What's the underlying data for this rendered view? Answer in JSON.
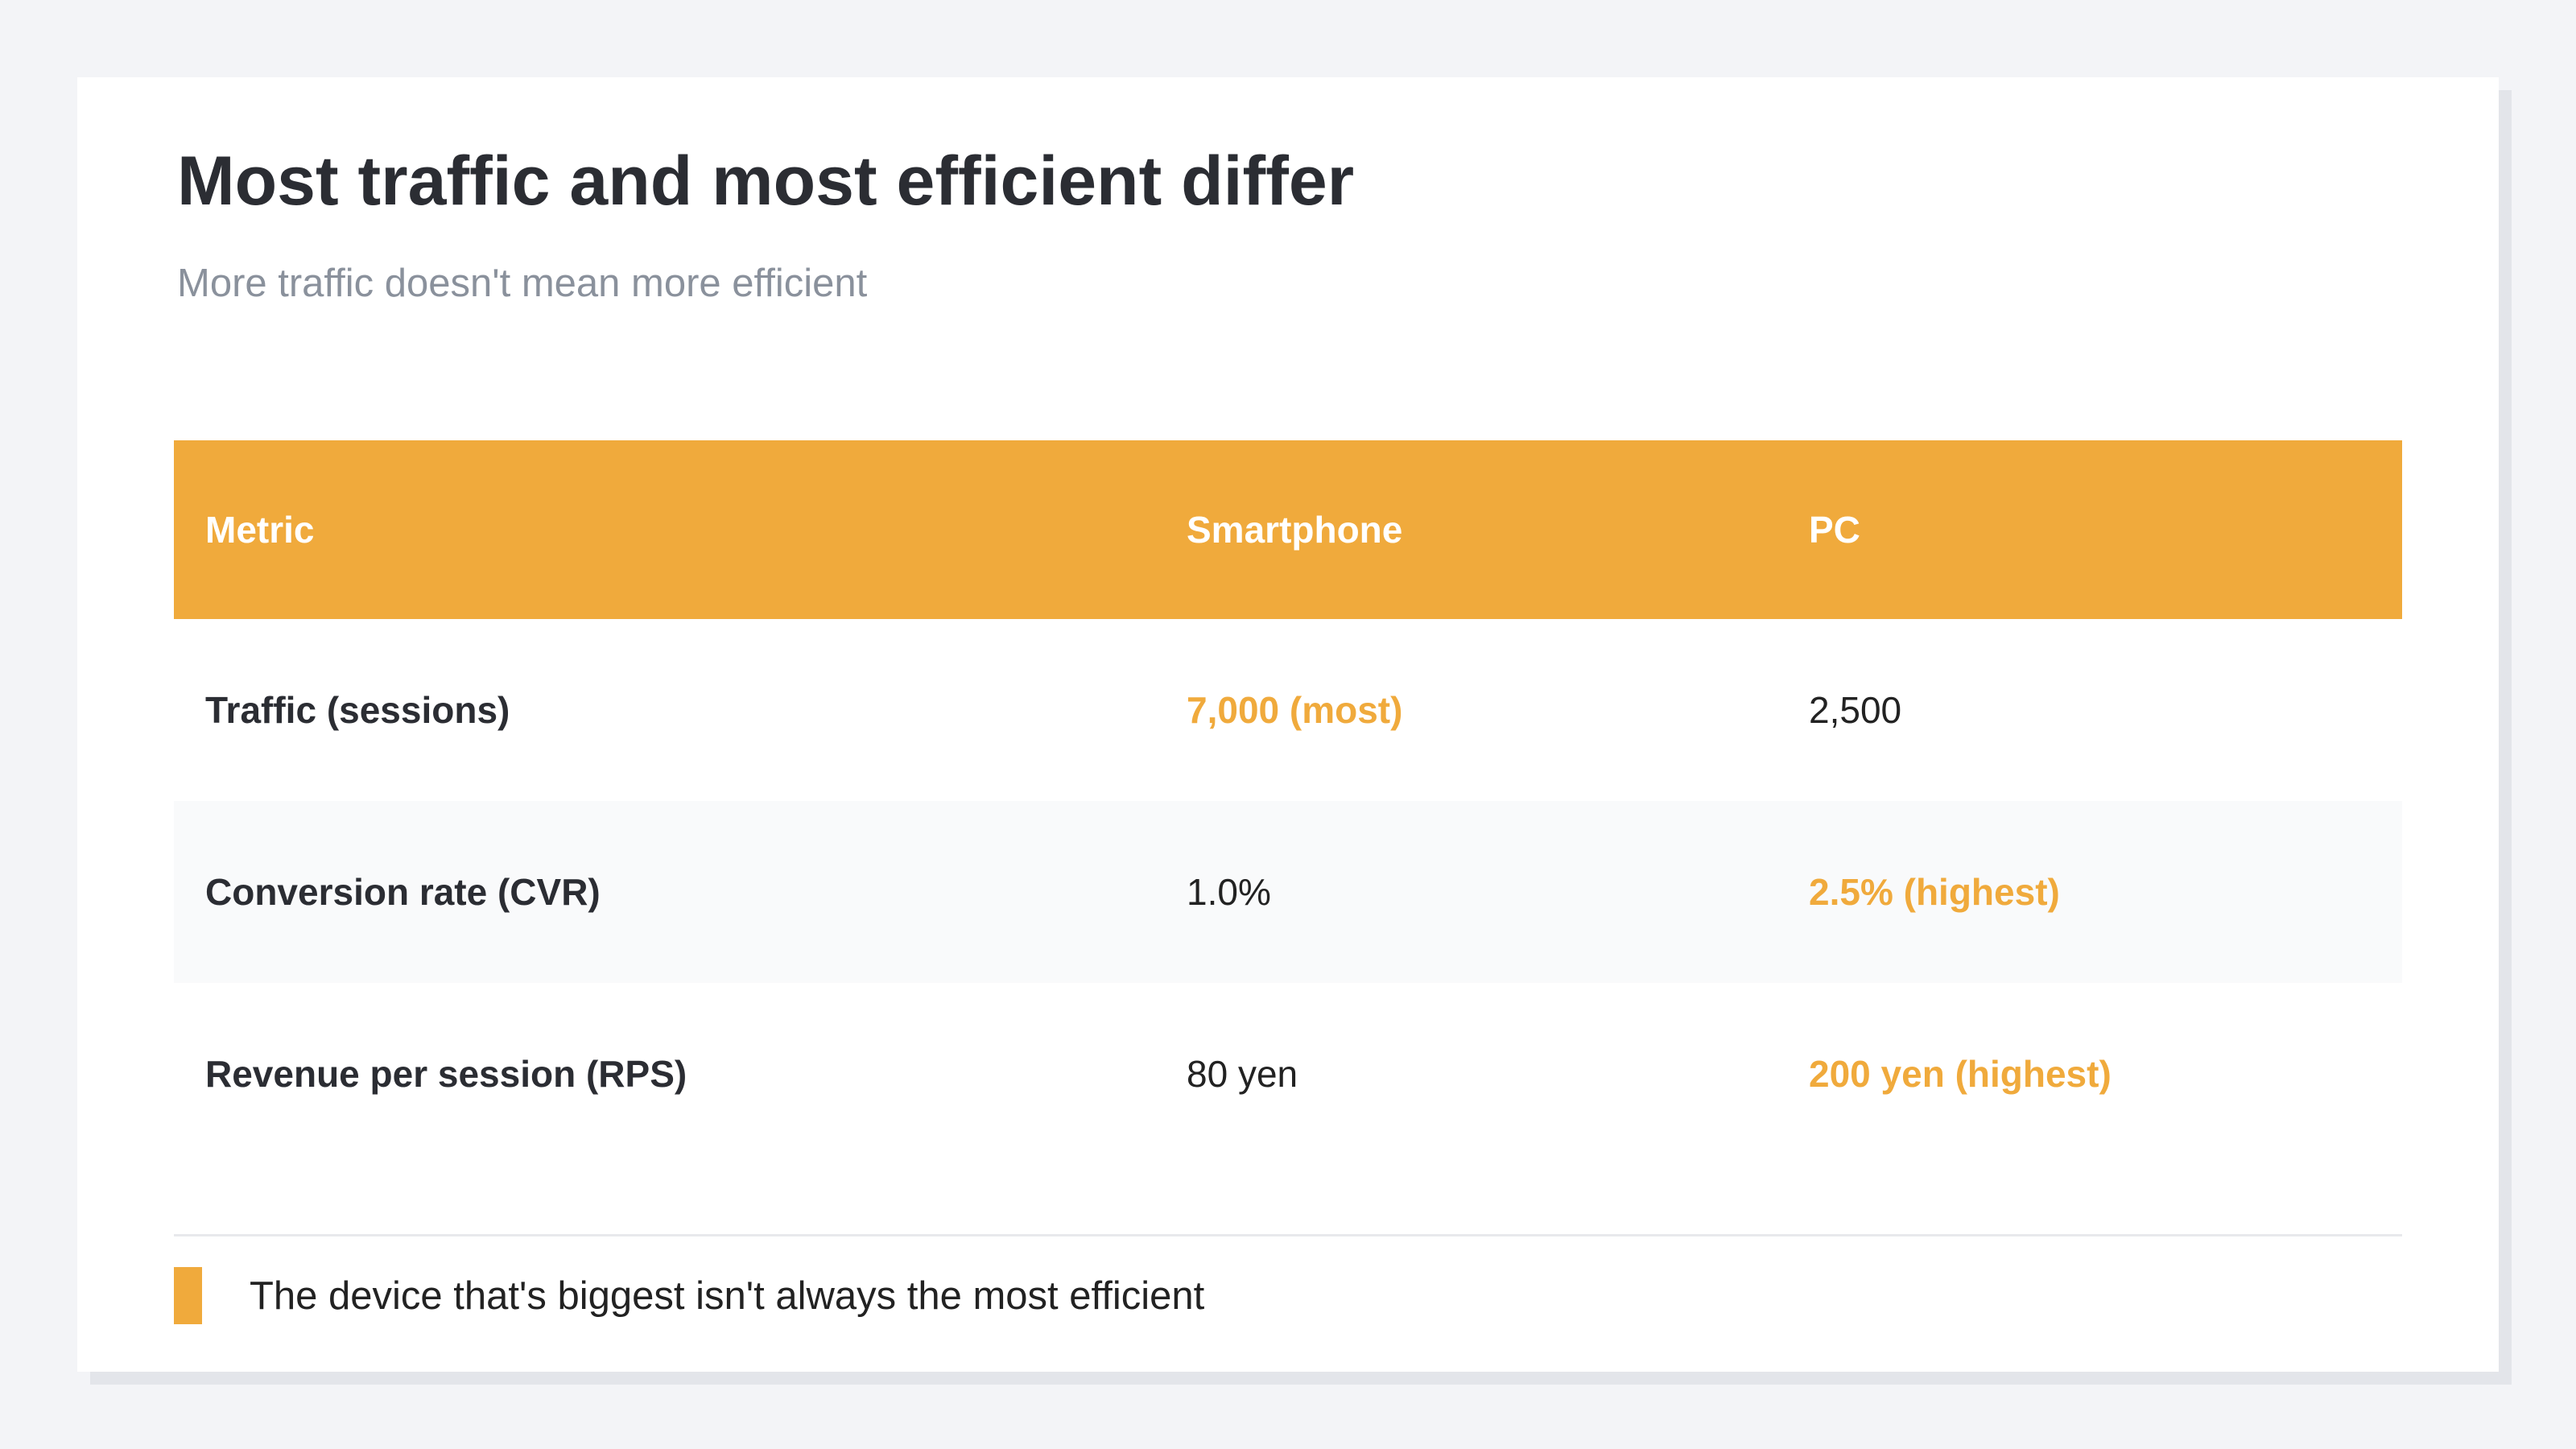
{
  "header": {
    "title": "Most traffic and most efficient differ",
    "subtitle": "More traffic doesn't mean more efficient"
  },
  "table": {
    "columns": [
      "Metric",
      "Smartphone",
      "PC"
    ],
    "rows": [
      [
        {
          "text": "Traffic (sessions)"
        },
        {
          "text": "7,000 (most)",
          "accent": true
        },
        {
          "text": "2,500"
        }
      ],
      [
        {
          "text": "Conversion rate (CVR)"
        },
        {
          "text": "1.0%"
        },
        {
          "text": "2.5% (highest)",
          "accent": true
        }
      ],
      [
        {
          "text": "Revenue per session (RPS)"
        },
        {
          "text": "80 yen"
        },
        {
          "text": "200 yen (highest)",
          "accent": true
        }
      ]
    ]
  },
  "footnote": "The device that's biggest isn't always the most efficient"
}
